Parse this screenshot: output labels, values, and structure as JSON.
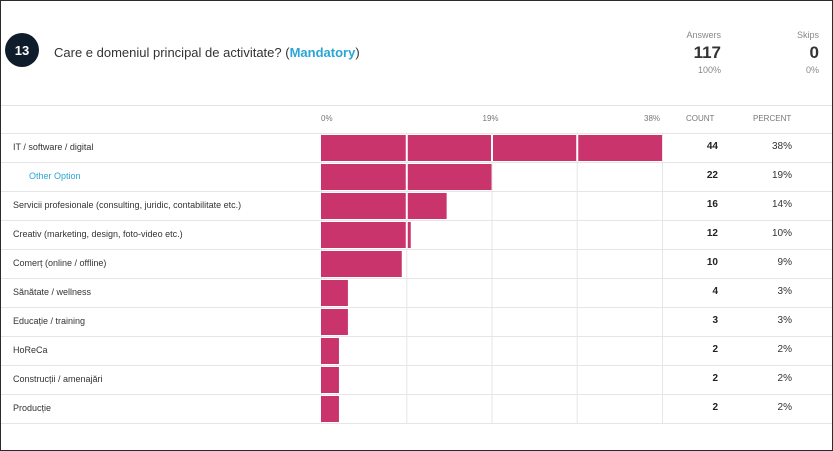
{
  "question": {
    "number": "13",
    "title_text": "Care e domeniul principal de activitate? (",
    "mandatory_label": "Mandatory",
    "title_close": ")"
  },
  "stats": {
    "answers_label": "Answers",
    "answers_value": "117",
    "answers_percent": "100%",
    "skips_label": "Skips",
    "skips_value": "0",
    "skips_percent": "0%"
  },
  "columns": {
    "count": "COUNT",
    "percent": "PERCENT"
  },
  "colors": {
    "bar": "#c8346b",
    "grid": "#e6e6e6",
    "accent": "#2aa6d6"
  },
  "chart_data": {
    "type": "bar",
    "orientation": "horizontal",
    "tick_labels": [
      "0%",
      "19%",
      "38%"
    ],
    "xlim": [
      0,
      38
    ],
    "rows": [
      {
        "label": "IT / software / digital",
        "count": "44",
        "percent": "38%",
        "value": 38,
        "other": false
      },
      {
        "label": "Other Option",
        "count": "22",
        "percent": "19%",
        "value": 19,
        "other": true
      },
      {
        "label": "Servicii profesionale (consulting, juridic, contabilitate etc.)",
        "count": "16",
        "percent": "14%",
        "value": 14,
        "other": false
      },
      {
        "label": "Creativ (marketing, design, foto-video etc.)",
        "count": "12",
        "percent": "10%",
        "value": 10,
        "other": false
      },
      {
        "label": "Comerț (online / offline)",
        "count": "10",
        "percent": "9%",
        "value": 9,
        "other": false
      },
      {
        "label": "Sănătate / wellness",
        "count": "4",
        "percent": "3%",
        "value": 3,
        "other": false
      },
      {
        "label": "Educație / training",
        "count": "3",
        "percent": "3%",
        "value": 3,
        "other": false
      },
      {
        "label": "HoReCa",
        "count": "2",
        "percent": "2%",
        "value": 2,
        "other": false
      },
      {
        "label": "Construcții / amenajări",
        "count": "2",
        "percent": "2%",
        "value": 2,
        "other": false
      },
      {
        "label": "Producție",
        "count": "2",
        "percent": "2%",
        "value": 2,
        "other": false
      }
    ]
  }
}
